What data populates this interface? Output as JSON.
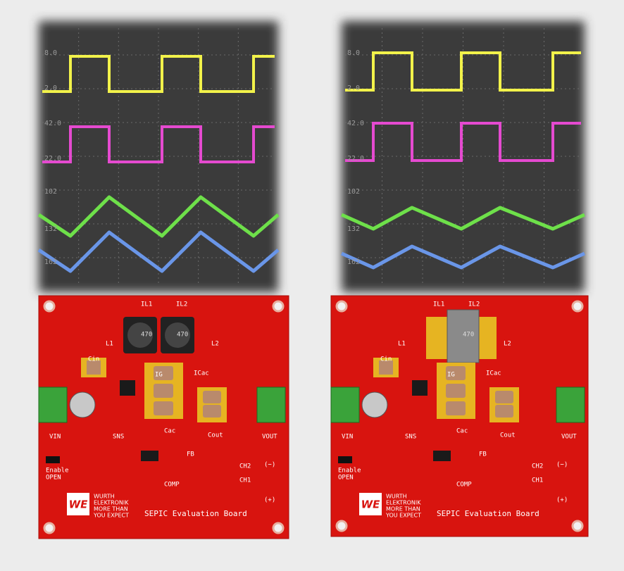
{
  "panels": [
    {
      "scope": {
        "labels": [
          "8.0",
          "2.0",
          "42.0",
          "22.0",
          "102",
          "132",
          "162"
        ]
      },
      "board": {
        "labels": [
          "IL1",
          "IL2",
          "L1",
          "L2",
          "Cin",
          "IG",
          "ICac",
          "Cac",
          "Cout",
          "VIN",
          "VOUT",
          "SNS",
          "FB",
          "CH2",
          "CH1",
          "COMP",
          "(−)",
          "(+)",
          "Enable",
          "OPEN",
          "470",
          "470"
        ],
        "logo": "WE",
        "brand": [
          "WURTH",
          "ELEKTRONIK",
          "MORE THAN",
          "YOU EXPECT"
        ],
        "title": "SEPIC Evaluation Board"
      }
    },
    {
      "scope": {
        "labels": [
          "8.0",
          "2.0",
          "42.0",
          "22.0",
          "102",
          "132",
          "162"
        ]
      },
      "board": {
        "labels": [
          "IL1",
          "IL2",
          "L1",
          "L2",
          "Cin",
          "IG",
          "ICac",
          "Cac",
          "Cout",
          "VIN",
          "VOUT",
          "SNS",
          "FB",
          "CH2",
          "CH1",
          "COMP",
          "(−)",
          "(+)",
          "Enable",
          "OPEN",
          "470"
        ],
        "logo": "WE",
        "brand": [
          "WURTH",
          "ELEKTRONIK",
          "MORE THAN",
          "YOU EXPECT"
        ],
        "title": "SEPIC Evaluation Board"
      }
    }
  ]
}
